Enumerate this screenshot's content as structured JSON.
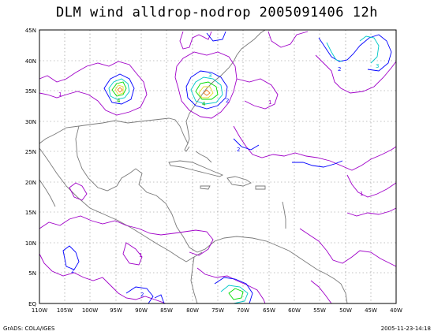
{
  "title": "DLM wind alldrop-nodrop 2005091406 12h",
  "footer_left": "GrADS: COLA/IGES",
  "footer_right": "2005-11-23-14:18",
  "map": {
    "lon_labels": [
      "110W",
      "105W",
      "100W",
      "95W",
      "90W",
      "85W",
      "80W",
      "75W",
      "70W",
      "65W",
      "60W",
      "55W",
      "50W",
      "45W",
      "40W"
    ],
    "lat_labels": [
      "EQ",
      "5N",
      "10N",
      "15N",
      "20N",
      "25N",
      "30N",
      "35N",
      "40N",
      "45N"
    ],
    "colors": {
      "frame": "#000000",
      "grid": "#888888",
      "coast": "#7a7a7a",
      "contour_1": "#a000c8",
      "contour_2": "#0000ff",
      "contour_3": "#00c8c8",
      "contour_4": "#00dc00",
      "contour_5": "#e6dc32",
      "contour_6": "#f08228"
    },
    "contour_values": [
      "1",
      "2",
      "3",
      "4",
      "5",
      "6"
    ]
  }
}
